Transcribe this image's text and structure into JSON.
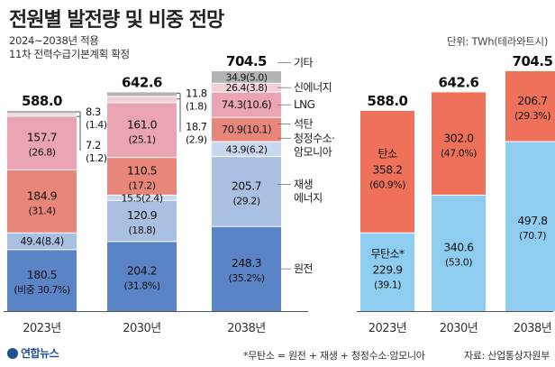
{
  "header": {
    "title": "전원별 발전량 및 비중 전망",
    "subtitle_line1": "2024~2038년 적용",
    "subtitle_line2": "11차 전력수급기본계획 확정",
    "unit": "단위: TWh(테라와트시)"
  },
  "footer": {
    "note": "*무탄소 = 원전 + 재생 + 청정수소·암모니아",
    "source": "자료: 산업통상자원부",
    "logo": "연합뉴스"
  },
  "colors": {
    "nuclear": "#5b84c7",
    "renewable": "#a9c0e2",
    "hydrogen": "#c9d8ef",
    "coal": "#e8867a",
    "lng": "#eaa4b3",
    "new_energy": "#f2d0d6",
    "other": "#b3b3b3",
    "carbon": "#f0715a",
    "carbon_free": "#8fcdf0"
  },
  "chart_data": [
    {
      "type": "bar",
      "stacked": true,
      "categories": [
        "2023년",
        "2030년",
        "2038년"
      ],
      "totals": [
        "588.0",
        "642.6",
        "704.5"
      ],
      "series": [
        {
          "key": "nuclear",
          "name": "원전",
          "values": [
            180.5,
            204.2,
            248.3
          ],
          "labels": [
            "180.5",
            "204.2",
            "248.3"
          ],
          "shares": [
            "(비중 30.7%)",
            "(31.8%)",
            "(35.2%)"
          ]
        },
        {
          "key": "renewable",
          "name": "재생\n에너지",
          "values": [
            49.4,
            120.9,
            205.7
          ],
          "labels": [
            "49.4",
            "120.9",
            "205.7"
          ],
          "shares": [
            "(8.4)",
            "(18.8)",
            "(29.2)"
          ]
        },
        {
          "key": "hydrogen",
          "name": "청정수소·\n암모니아",
          "values": [
            0,
            15.5,
            43.9
          ],
          "labels": [
            "",
            "15.5",
            "43.9"
          ],
          "shares": [
            "",
            "(2.4)",
            "(6.2)"
          ]
        },
        {
          "key": "coal",
          "name": "석탄",
          "values": [
            184.9,
            110.5,
            70.9
          ],
          "labels": [
            "184.9",
            "110.5",
            "70.9"
          ],
          "shares": [
            "(31.4)",
            "(17.2)",
            "(10.1)"
          ]
        },
        {
          "key": "lng",
          "name": "LNG",
          "values": [
            157.7,
            161.0,
            74.3
          ],
          "labels": [
            "157.7",
            "161.0",
            "74.3"
          ],
          "shares": [
            "(26.8)",
            "(25.1)",
            "(10.6)"
          ]
        },
        {
          "key": "new_energy",
          "name": "신에너지",
          "values": [
            7.2,
            18.7,
            26.4
          ],
          "labels": [
            "7.2",
            "18.7",
            "26.4"
          ],
          "shares": [
            "(1.2)",
            "(2.9)",
            "(3.8)"
          ]
        },
        {
          "key": "other",
          "name": "기타",
          "values": [
            8.3,
            11.8,
            34.9
          ],
          "labels": [
            "8.3",
            "11.8",
            "34.9"
          ],
          "shares": [
            "(1.4)",
            "(1.8)",
            "(5.0)"
          ]
        }
      ]
    },
    {
      "type": "bar",
      "stacked": true,
      "categories": [
        "2023년",
        "2030년",
        "2038년"
      ],
      "totals": [
        "588.0",
        "642.6",
        "704.5"
      ],
      "series": [
        {
          "key": "carbon_free",
          "name": "무탄소*",
          "values": [
            229.9,
            340.6,
            497.8
          ],
          "labels": [
            "229.9",
            "340.6",
            "497.8"
          ],
          "shares": [
            "(39.1)",
            "(53.0)",
            "(70.7)"
          ]
        },
        {
          "key": "carbon",
          "name": "탄소",
          "values": [
            358.2,
            302.0,
            206.7
          ],
          "labels": [
            "358.2",
            "302.0",
            "206.7"
          ],
          "shares": [
            "(60.9%)",
            "(47.0%)",
            "(29.3%)"
          ]
        }
      ]
    }
  ]
}
